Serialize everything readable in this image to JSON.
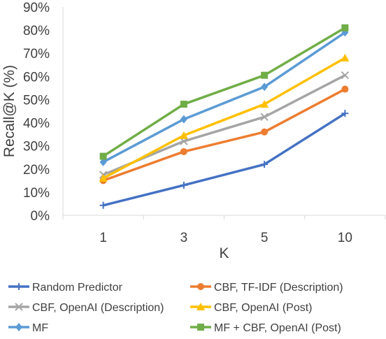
{
  "chart_data": {
    "type": "line",
    "categories": [
      "1",
      "3",
      "5",
      "10"
    ],
    "xlabel": "K",
    "ylabel": "Recall@K (%)",
    "ylim": [
      0,
      90
    ],
    "yticks": [
      "0%",
      "10%",
      "20%",
      "30%",
      "40%",
      "50%",
      "60%",
      "70%",
      "80%",
      "90%"
    ],
    "grid": false,
    "legend_position": "bottom",
    "series": [
      {
        "name": "Random Predictor",
        "values": [
          4.3,
          13,
          22,
          44
        ],
        "color": "#4472c4",
        "marker": "plus"
      },
      {
        "name": "CBF, TF-IDF (Description)",
        "values": [
          15,
          27.5,
          36,
          54.5
        ],
        "color": "#ed7d31",
        "marker": "circle"
      },
      {
        "name": "CBF, OpenAI (Description)",
        "values": [
          17.5,
          32,
          42.5,
          60.5
        ],
        "color": "#a5a5a5",
        "marker": "x"
      },
      {
        "name": "CBF, OpenAI (Post)",
        "values": [
          16,
          34.5,
          48,
          68
        ],
        "color": "#ffc000",
        "marker": "triangle"
      },
      {
        "name": "MF",
        "values": [
          23,
          41.5,
          55.5,
          79
        ],
        "color": "#5b9bd5",
        "marker": "diamond"
      },
      {
        "name": "MF + CBF, OpenAI (Post)",
        "values": [
          25.5,
          48,
          60.5,
          81
        ],
        "color": "#70ad47",
        "marker": "square"
      }
    ]
  }
}
